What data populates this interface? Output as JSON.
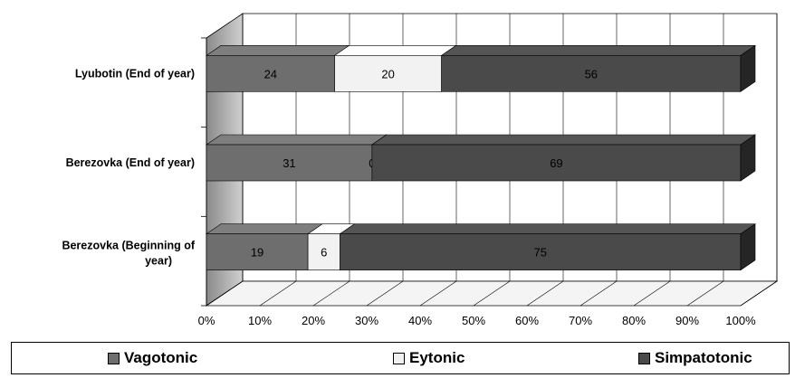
{
  "chart_data": {
    "type": "bar",
    "orientation": "horizontal",
    "stacked": "percent",
    "categories": [
      "Lyubotin (End of year)",
      "Berezovka (End of year)",
      "Berezovka (Beginning of year)"
    ],
    "series": [
      {
        "name": "Vagotonic",
        "values": [
          24,
          31,
          19
        ],
        "color": "#6e6e6e"
      },
      {
        "name": "Eytonic",
        "values": [
          20,
          0,
          6
        ],
        "color": "#f2f2f2"
      },
      {
        "name": "Simpatotonic",
        "values": [
          56,
          69,
          75
        ],
        "color": "#4a4a4a"
      }
    ],
    "x_ticks": [
      "0%",
      "10%",
      "20%",
      "30%",
      "40%",
      "50%",
      "60%",
      "70%",
      "80%",
      "90%",
      "100%"
    ],
    "xlim": [
      0,
      100
    ],
    "grid": true,
    "legend_position": "bottom",
    "style": "3d"
  }
}
